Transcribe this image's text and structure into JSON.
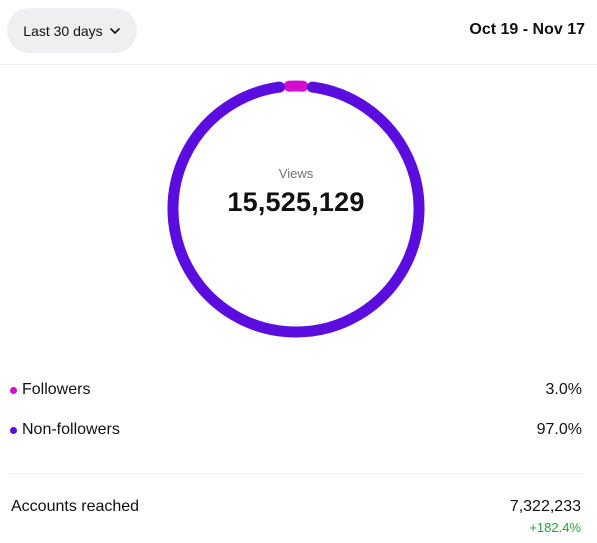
{
  "header": {
    "range_button_label": "Last 30 days",
    "date_range": "Oct 19 - Nov 17"
  },
  "donut": {
    "label": "Views",
    "total": "15,525,129",
    "segments": [
      {
        "name": "Followers",
        "percent": 3.0,
        "color": "#d30ccf"
      },
      {
        "name": "Non-followers",
        "percent": 97.0,
        "color": "#5b0de0"
      }
    ]
  },
  "legend": [
    {
      "name": "Followers",
      "value": "3.0%",
      "color": "#d30ccf"
    },
    {
      "name": "Non-followers",
      "value": "97.0%",
      "color": "#5b0de0"
    }
  ],
  "reach": {
    "label": "Accounts reached",
    "value": "7,322,233",
    "delta": "+182.4%",
    "delta_color": "#2a9d3f"
  }
}
